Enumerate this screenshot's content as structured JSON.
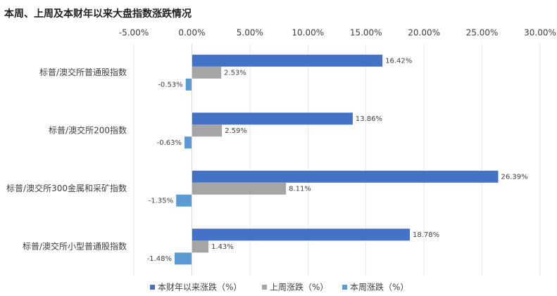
{
  "chart_data": {
    "type": "bar",
    "orientation": "horizontal",
    "title": "本周、上周及本财年以来大盘指数涨跌情况",
    "categories": [
      "标普/澳交所普通股指数",
      "标普/澳交所200指数",
      "标普/澳交所300金属和采矿指数",
      "标普/澳交所小型普通股指数"
    ],
    "series": [
      {
        "name": "本财年以来涨跌（%）",
        "color": "#4472c4",
        "values": [
          16.42,
          13.86,
          26.39,
          18.78
        ],
        "value_labels": [
          "16.42%",
          "13.86%",
          "26.39%",
          "18.78%"
        ]
      },
      {
        "name": "上周涨跌（%）",
        "color": "#a5a5a5",
        "values": [
          2.53,
          2.59,
          8.11,
          1.43
        ],
        "value_labels": [
          "2.53%",
          "2.59%",
          "8.11%",
          "1.43%"
        ]
      },
      {
        "name": "本周涨跌（%）",
        "color": "#5b9bd5",
        "values": [
          -0.53,
          -0.63,
          -1.35,
          -1.48
        ],
        "value_labels": [
          "-0.53%",
          "-0.63%",
          "-1.35%",
          "-1.48%"
        ]
      }
    ],
    "xlim": [
      -5,
      30
    ],
    "xticks": [
      {
        "value": -5,
        "label": "-5.00%"
      },
      {
        "value": 0,
        "label": "0.00%"
      },
      {
        "value": 5,
        "label": "5.00%"
      },
      {
        "value": 10,
        "label": "10.00%"
      },
      {
        "value": 15,
        "label": "15.00%"
      },
      {
        "value": 20,
        "label": "20.00%"
      },
      {
        "value": 25,
        "label": "25.00%"
      },
      {
        "value": 30,
        "label": "30.00%"
      }
    ],
    "grid": true,
    "legend": "bottom"
  }
}
